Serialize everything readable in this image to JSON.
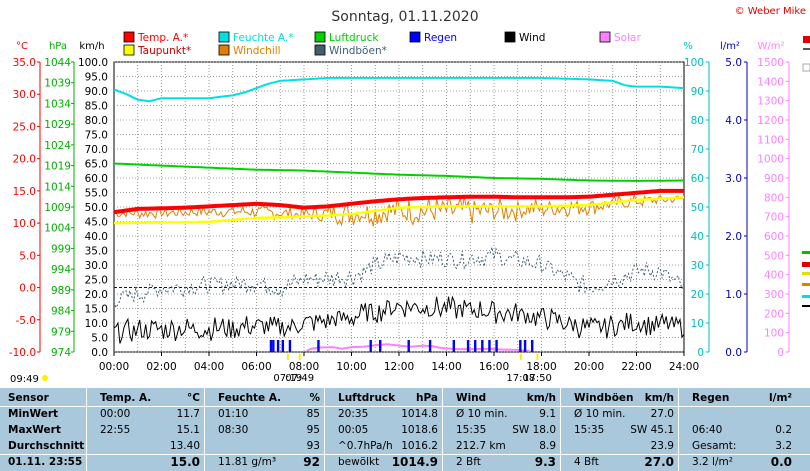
{
  "chart_data": {
    "type": "line",
    "title": "Sonntag, 01.11.2020",
    "credit": "© Weber Mike",
    "x_ticks": [
      "00:00",
      "02:00",
      "04:00",
      "06:00",
      "08:00",
      "10:00",
      "12:00",
      "14:00",
      "16:00",
      "18:00",
      "20:00",
      "22:00",
      "24:00"
    ],
    "axes": {
      "temp": {
        "label": "°C",
        "color": "#ff0000",
        "min": -10,
        "max": 35,
        "ticks": [
          "35.0",
          "30.0",
          "25.0",
          "20.0",
          "15.0",
          "10.0",
          "5.0",
          "0.0",
          "-5.0",
          "-10.0"
        ]
      },
      "hpa": {
        "label": "hPa",
        "color": "#00b000",
        "min": 974,
        "max": 1044,
        "ticks": [
          "1044",
          "1039",
          "1034",
          "1029",
          "1024",
          "1019",
          "1014",
          "1009",
          "1004",
          "999",
          "994",
          "989",
          "984",
          "979",
          "974"
        ]
      },
      "kmh": {
        "label": "km/h",
        "color": "#000000",
        "min": 0,
        "max": 100,
        "ticks": [
          "100.0",
          "95.0",
          "90.0",
          "85.0",
          "80.0",
          "75.0",
          "70.0",
          "65.0",
          "60.0",
          "55.0",
          "50.0",
          "45.0",
          "40.0",
          "35.0",
          "30.0",
          "25.0",
          "20.0",
          "15.0",
          "10.0",
          "5.0",
          "0.0"
        ]
      },
      "pct": {
        "label": "%",
        "color": "#00c0c0",
        "min": 0,
        "max": 100,
        "ticks": [
          "100",
          "90",
          "80",
          "70",
          "60",
          "50",
          "40",
          "30",
          "20",
          "10",
          "0"
        ]
      },
      "lm2": {
        "label": "l/m²",
        "color": "#0000c0",
        "min": 0,
        "max": 5,
        "ticks": [
          "5.0",
          "4.0",
          "3.0",
          "2.0",
          "1.0",
          "0.0"
        ]
      },
      "wm2": {
        "label": "W/m²",
        "color": "#ff80ff",
        "min": 0,
        "max": 1500,
        "ticks": [
          "1500",
          "1400",
          "1300",
          "1200",
          "1100",
          "1000",
          "900",
          "800",
          "700",
          "600",
          "500",
          "400",
          "300",
          "200",
          "100",
          "0"
        ]
      }
    },
    "legend": [
      {
        "name": "Temp. A.*",
        "color": "#ff0000"
      },
      {
        "name": "Feuchte A.*",
        "color": "#00e0e0"
      },
      {
        "name": "Luftdruck",
        "color": "#00d000"
      },
      {
        "name": "Regen",
        "color": "#0000ff"
      },
      {
        "name": "Wind",
        "color": "#000000"
      },
      {
        "name": "Solar",
        "color": "#ff80ff"
      },
      {
        "name": "Taupunkt*",
        "color": "#ffff00"
      },
      {
        "name": "Windchill",
        "color": "#e08000"
      },
      {
        "name": "Windböen*",
        "color": "#406070"
      }
    ],
    "series": [
      {
        "name": "Temp. A.*",
        "axis": "temp",
        "color": "#ff0000",
        "width": 4,
        "points": [
          [
            0,
            11.7
          ],
          [
            1,
            12.2
          ],
          [
            2,
            12.3
          ],
          [
            3,
            12.4
          ],
          [
            4,
            12.6
          ],
          [
            5,
            12.8
          ],
          [
            6,
            13.0
          ],
          [
            7,
            12.8
          ],
          [
            8,
            12.4
          ],
          [
            9,
            12.6
          ],
          [
            10,
            13.0
          ],
          [
            11,
            13.4
          ],
          [
            12,
            13.7
          ],
          [
            13,
            13.9
          ],
          [
            14,
            14.0
          ],
          [
            15,
            14.1
          ],
          [
            16,
            14.1
          ],
          [
            17,
            14.0
          ],
          [
            18,
            14.0
          ],
          [
            19,
            14.0
          ],
          [
            20,
            14.1
          ],
          [
            21,
            14.4
          ],
          [
            22,
            14.7
          ],
          [
            23,
            15.0
          ],
          [
            24,
            15.0
          ]
        ]
      },
      {
        "name": "Feuchte A.*",
        "axis": "pct",
        "color": "#00e0e0",
        "width": 2,
        "points": [
          [
            0,
            90.5
          ],
          [
            0.5,
            89
          ],
          [
            1,
            87
          ],
          [
            1.5,
            86.5
          ],
          [
            2,
            87.5
          ],
          [
            3,
            87.5
          ],
          [
            4,
            87.5
          ],
          [
            5,
            88.5
          ],
          [
            5.5,
            89.5
          ],
          [
            6,
            91
          ],
          [
            6.5,
            92.5
          ],
          [
            7,
            93.5
          ],
          [
            8,
            94
          ],
          [
            9,
            94.5
          ],
          [
            10,
            94.5
          ],
          [
            12,
            94.5
          ],
          [
            14,
            94.5
          ],
          [
            16,
            94.5
          ],
          [
            18,
            94.5
          ],
          [
            20,
            94
          ],
          [
            21,
            93.5
          ],
          [
            21.5,
            92
          ],
          [
            22,
            91.5
          ],
          [
            23,
            91.5
          ],
          [
            24,
            91
          ]
        ]
      },
      {
        "name": "Luftdruck",
        "axis": "hpa",
        "color": "#00d000",
        "width": 2,
        "points": [
          [
            0,
            1019.5
          ],
          [
            2,
            1019.0
          ],
          [
            4,
            1018.5
          ],
          [
            6,
            1018.0
          ],
          [
            8,
            1017.8
          ],
          [
            10,
            1017.3
          ],
          [
            12,
            1016.8
          ],
          [
            14,
            1016.5
          ],
          [
            16,
            1016.0
          ],
          [
            18,
            1015.8
          ],
          [
            20,
            1015.4
          ],
          [
            22,
            1015.3
          ],
          [
            24,
            1015.4
          ]
        ]
      },
      {
        "name": "Taupunkt*",
        "axis": "temp",
        "color": "#ffff00",
        "width": 2.5,
        "points": [
          [
            0,
            10.0
          ],
          [
            2,
            10.1
          ],
          [
            4,
            10.2
          ],
          [
            6,
            10.8
          ],
          [
            8,
            11.0
          ],
          [
            10,
            11.4
          ],
          [
            12,
            12.4
          ],
          [
            14,
            12.6
          ],
          [
            16,
            12.6
          ],
          [
            18,
            12.6
          ],
          [
            20,
            12.8
          ],
          [
            22,
            13.6
          ],
          [
            24,
            14.0
          ]
        ]
      }
    ],
    "noisy_series": [
      {
        "name": "Windchill",
        "axis": "temp",
        "color": "#e08000",
        "base": [
          [
            0,
            11.5
          ],
          [
            2,
            11.6
          ],
          [
            4,
            11.8
          ],
          [
            6,
            11.8
          ],
          [
            8,
            11.3
          ],
          [
            10,
            11.6
          ],
          [
            12,
            11.8
          ],
          [
            14,
            11.9
          ],
          [
            16,
            11.9
          ],
          [
            18,
            12.3
          ],
          [
            20,
            12.6
          ],
          [
            22,
            13.4
          ],
          [
            24,
            13.8
          ]
        ],
        "amp": [
          [
            0,
            0.6
          ],
          [
            8,
            0.8
          ],
          [
            10,
            1.5
          ],
          [
            14,
            1.8
          ],
          [
            18,
            1.2
          ],
          [
            22,
            0.8
          ],
          [
            24,
            0.6
          ]
        ],
        "dash": false
      },
      {
        "name": "Windböen*",
        "axis": "kmh",
        "color": "#406070",
        "base": [
          [
            0,
            18
          ],
          [
            2,
            22
          ],
          [
            4,
            23
          ],
          [
            6,
            24
          ],
          [
            7,
            22
          ],
          [
            8,
            25
          ],
          [
            10,
            26
          ],
          [
            12,
            33
          ],
          [
            14,
            32
          ],
          [
            16,
            33
          ],
          [
            18,
            30
          ],
          [
            20,
            22
          ],
          [
            21,
            25
          ],
          [
            22,
            28
          ],
          [
            23,
            28
          ],
          [
            24,
            22
          ]
        ],
        "amp": [
          [
            0,
            2.5
          ],
          [
            24,
            2.5
          ]
        ],
        "dash": true
      },
      {
        "name": "Wind",
        "axis": "kmh",
        "color": "#000000",
        "base": [
          [
            0,
            7
          ],
          [
            2,
            8
          ],
          [
            4,
            8
          ],
          [
            6,
            9
          ],
          [
            7,
            8
          ],
          [
            8,
            10
          ],
          [
            10,
            12
          ],
          [
            12,
            16
          ],
          [
            14,
            15
          ],
          [
            16,
            14
          ],
          [
            18,
            12
          ],
          [
            20,
            8
          ],
          [
            22,
            10
          ],
          [
            24,
            9
          ]
        ],
        "amp": [
          [
            0,
            3
          ],
          [
            24,
            3
          ]
        ],
        "dash": false
      }
    ],
    "rain_bars_h": [
      6.6,
      6.7,
      6.9,
      7.1,
      7.4,
      8.6,
      10.8,
      11.2,
      12.4,
      13.3,
      14.3,
      14.9,
      15.2,
      15.5,
      15.8,
      16.1,
      17.1,
      17.3,
      17.6
    ],
    "solar_points": [
      [
        8.1,
        0
      ],
      [
        8.3,
        12
      ],
      [
        8.7,
        18
      ],
      [
        9.2,
        20
      ],
      [
        9.6,
        12
      ],
      [
        10.0,
        20
      ],
      [
        10.5,
        22
      ],
      [
        11.0,
        30
      ],
      [
        11.5,
        35
      ],
      [
        12.0,
        28
      ],
      [
        12.5,
        22
      ],
      [
        13.0,
        28
      ],
      [
        13.4,
        25
      ],
      [
        13.8,
        15
      ],
      [
        14.5,
        10
      ],
      [
        15.2,
        10
      ],
      [
        15.8,
        12
      ],
      [
        16.3,
        8
      ],
      [
        16.8,
        6
      ],
      [
        17.2,
        4
      ],
      [
        17.5,
        0
      ]
    ],
    "ref_line": {
      "axis": "temp",
      "value": 0,
      "color": "#0000c0"
    },
    "sun_markers": [
      {
        "label": "09:49",
        "hour": null,
        "pos": "left"
      },
      {
        "label": "07:19",
        "hour": 7.32
      },
      {
        "label": "07:49",
        "hour": 7.82
      },
      {
        "label": "17:08",
        "hour": 17.13
      },
      {
        "label": "17:50",
        "hour": 17.83
      }
    ],
    "legend_placement": "top"
  },
  "footer": {
    "headers": [
      {
        "a": "Sensor",
        "b": ""
      },
      {
        "a": "Temp. A.",
        "b": "°C"
      },
      {
        "a": "Feuchte A.",
        "b": "%"
      },
      {
        "a": "Luftdruck",
        "b": "hPa"
      },
      {
        "a": "Wind",
        "b": "km/h"
      },
      {
        "a": "Windböen",
        "b": "km/h"
      },
      {
        "a": "Regen",
        "b": "l/m²"
      }
    ],
    "rows": [
      [
        {
          "a": "MinWert",
          "b": ""
        },
        {
          "a": "00:00",
          "b": "11.7"
        },
        {
          "a": "01:10",
          "b": "85"
        },
        {
          "a": "20:35",
          "b": "1014.8"
        },
        {
          "a": "Ø 10 min.",
          "b": "9.1"
        },
        {
          "a": "Ø 10 min.",
          "b": "27.0"
        },
        {
          "a": "",
          "b": ""
        }
      ],
      [
        {
          "a": "MaxWert",
          "b": ""
        },
        {
          "a": "22:55",
          "b": "15.1"
        },
        {
          "a": "08:30",
          "b": "95"
        },
        {
          "a": "00:05",
          "b": "1018.6"
        },
        {
          "a": "15:35",
          "b": "SW 18.0"
        },
        {
          "a": "15:35",
          "b": "SW 45.1"
        },
        {
          "a": "06:40",
          "b": "0.2"
        }
      ],
      [
        {
          "a": "Durchschnitt",
          "b": ""
        },
        {
          "a": "",
          "b": "13.40"
        },
        {
          "a": "",
          "b": "93"
        },
        {
          "a": "^0.7hPa/h",
          "b": "1016.2"
        },
        {
          "a": "212.7 km",
          "b": "8.9"
        },
        {
          "a": "",
          "b": "23.9"
        },
        {
          "a": "Gesamt:",
          "b": "3.2"
        }
      ],
      [
        {
          "a": "01.11. 23:55",
          "b": ""
        },
        {
          "a": "",
          "b": "15.0"
        },
        {
          "a": "11.81 g/m³",
          "b": "92"
        },
        {
          "a": "bewölkt",
          "b": "1014.9"
        },
        {
          "a": "2 Bft",
          "b": "9.3"
        },
        {
          "a": "4 Bft",
          "b": "27.0"
        },
        {
          "a": "3.2 l/m²",
          "b": "0.0"
        }
      ]
    ]
  }
}
